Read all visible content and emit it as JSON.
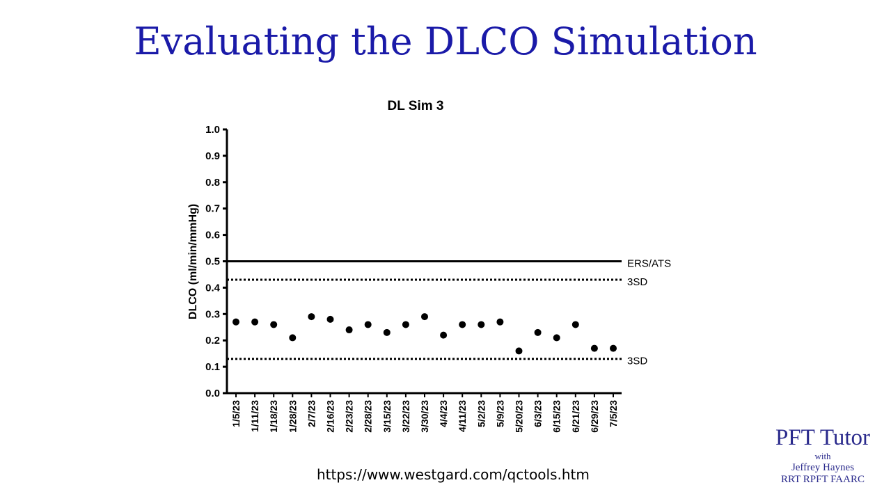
{
  "slide": {
    "title": "Evaluating the DLCO Simulation",
    "source_url": "https://www.westgard.com/qctools.htm"
  },
  "brand": {
    "name": "PFT Tutor",
    "with": "with",
    "author": "Jeffrey Haynes",
    "credentials": "RRT RPFT FAARC",
    "color": "#2a2a8c"
  },
  "colors": {
    "title": "#1a1aa8"
  },
  "chart_data": {
    "type": "scatter",
    "title": "DL Sim 3",
    "xlabel": "",
    "ylabel": "DLCO (ml/min/mmHg)",
    "ylim": [
      0.0,
      1.0
    ],
    "yticks": [
      "0.0",
      "0.1",
      "0.2",
      "0.3",
      "0.4",
      "0.5",
      "0.6",
      "0.7",
      "0.8",
      "0.9",
      "1.0"
    ],
    "categories": [
      "1/5/23",
      "1/11/23",
      "1/18/23",
      "1/28/23",
      "2/7/23",
      "2/16/23",
      "2/23/23",
      "2/28/23",
      "3/15/23",
      "3/22/23",
      "3/30/23",
      "4/4/23",
      "4/11/23",
      "5/2/23",
      "5/9/23",
      "5/20/23",
      "6/3/23",
      "6/15/23",
      "6/21/23",
      "6/29/23",
      "7/5/23"
    ],
    "values": [
      0.27,
      0.27,
      0.26,
      0.21,
      0.29,
      0.28,
      0.24,
      0.26,
      0.23,
      0.26,
      0.29,
      0.22,
      0.26,
      0.26,
      0.27,
      0.16,
      0.23,
      0.21,
      0.26,
      0.17,
      0.17
    ],
    "reference_lines": [
      {
        "value": 0.5,
        "label": "ERS/ATS",
        "style": "solid"
      },
      {
        "value": 0.43,
        "label": "3SD",
        "style": "dotted"
      },
      {
        "value": 0.13,
        "label": "3SD",
        "style": "dotted"
      }
    ],
    "grid": false,
    "legend": "none"
  }
}
